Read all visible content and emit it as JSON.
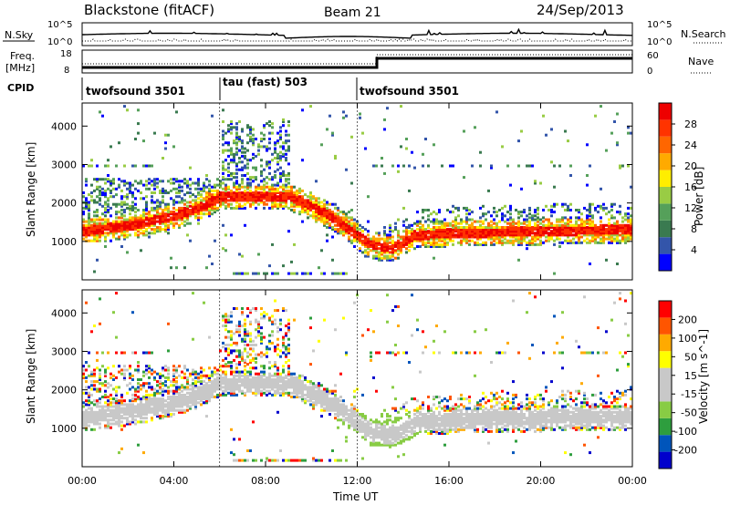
{
  "header": {
    "site": "Blackstone (fitACF)",
    "beam": "Beam 21",
    "date": "24/Sep/2013"
  },
  "panels": {
    "nsky": {
      "left_label": "N.Sky",
      "right_label": "N.Search",
      "left_ticks": [
        "10^5",
        "10^0"
      ],
      "right_ticks": [
        "10^5",
        "10^0"
      ]
    },
    "freq": {
      "left_label_line1": "Freq.",
      "left_label_line2": "[MHz]",
      "left_ticks": [
        "18",
        "8"
      ],
      "right_label": "Nave",
      "right_ticks": [
        "60",
        "0"
      ]
    },
    "cpid": {
      "label": "CPID",
      "segments": [
        "twofsound 3501",
        "tau (fast) 503",
        "twofsound 3501"
      ]
    }
  },
  "colors": {
    "power_scale": [
      "#0000ff",
      "#3355aa",
      "#3a7a50",
      "#55a05a",
      "#99cc44",
      "#ffee00",
      "#ffaa00",
      "#ff6600",
      "#ff3300",
      "#ee0000"
    ],
    "velocity_scale": [
      "#ff0000",
      "#ff5500",
      "#ffaa00",
      "#ffff00",
      "#c8c8c8",
      "#c8c8c8",
      "#88cc44",
      "#2e9e3e",
      "#0055bb",
      "#0000cc"
    ]
  },
  "chart_data": [
    {
      "type": "heatmap",
      "title": "Power",
      "ylabel": "Slant Range [km]",
      "xlabel": "",
      "x_ticks": [
        "00:00",
        "04:00",
        "08:00",
        "12:00",
        "16:00",
        "20:00",
        "00:00"
      ],
      "y_ticks": [
        1000,
        2000,
        3000,
        4000
      ],
      "ylim": [
        0,
        4600
      ],
      "colorbar_label": "Power [dB]",
      "colorbar_ticks": [
        4,
        8,
        12,
        16,
        20,
        24,
        28
      ],
      "main_band_center_km": [
        [
          0,
          1300
        ],
        [
          2,
          1450
        ],
        [
          4,
          1700
        ],
        [
          5,
          1900
        ],
        [
          6,
          2200
        ],
        [
          9,
          2200
        ],
        [
          10.5,
          1800
        ],
        [
          11.5,
          1400
        ],
        [
          12.5,
          950
        ],
        [
          13.5,
          850
        ],
        [
          14.5,
          1200
        ],
        [
          16,
          1250
        ],
        [
          20,
          1300
        ],
        [
          24,
          1350
        ]
      ]
    },
    {
      "type": "heatmap",
      "title": "Velocity",
      "ylabel": "Slant Range [km]",
      "xlabel": "Time UT",
      "x_ticks": [
        "00:00",
        "04:00",
        "08:00",
        "12:00",
        "16:00",
        "20:00",
        "00:00"
      ],
      "y_ticks": [
        1000,
        2000,
        3000,
        4000
      ],
      "ylim": [
        0,
        4600
      ],
      "colorbar_label": "Velocity [m s^-1]",
      "colorbar_ticks": [
        200,
        100,
        50,
        15,
        -15,
        -50,
        -100,
        -200
      ]
    }
  ]
}
